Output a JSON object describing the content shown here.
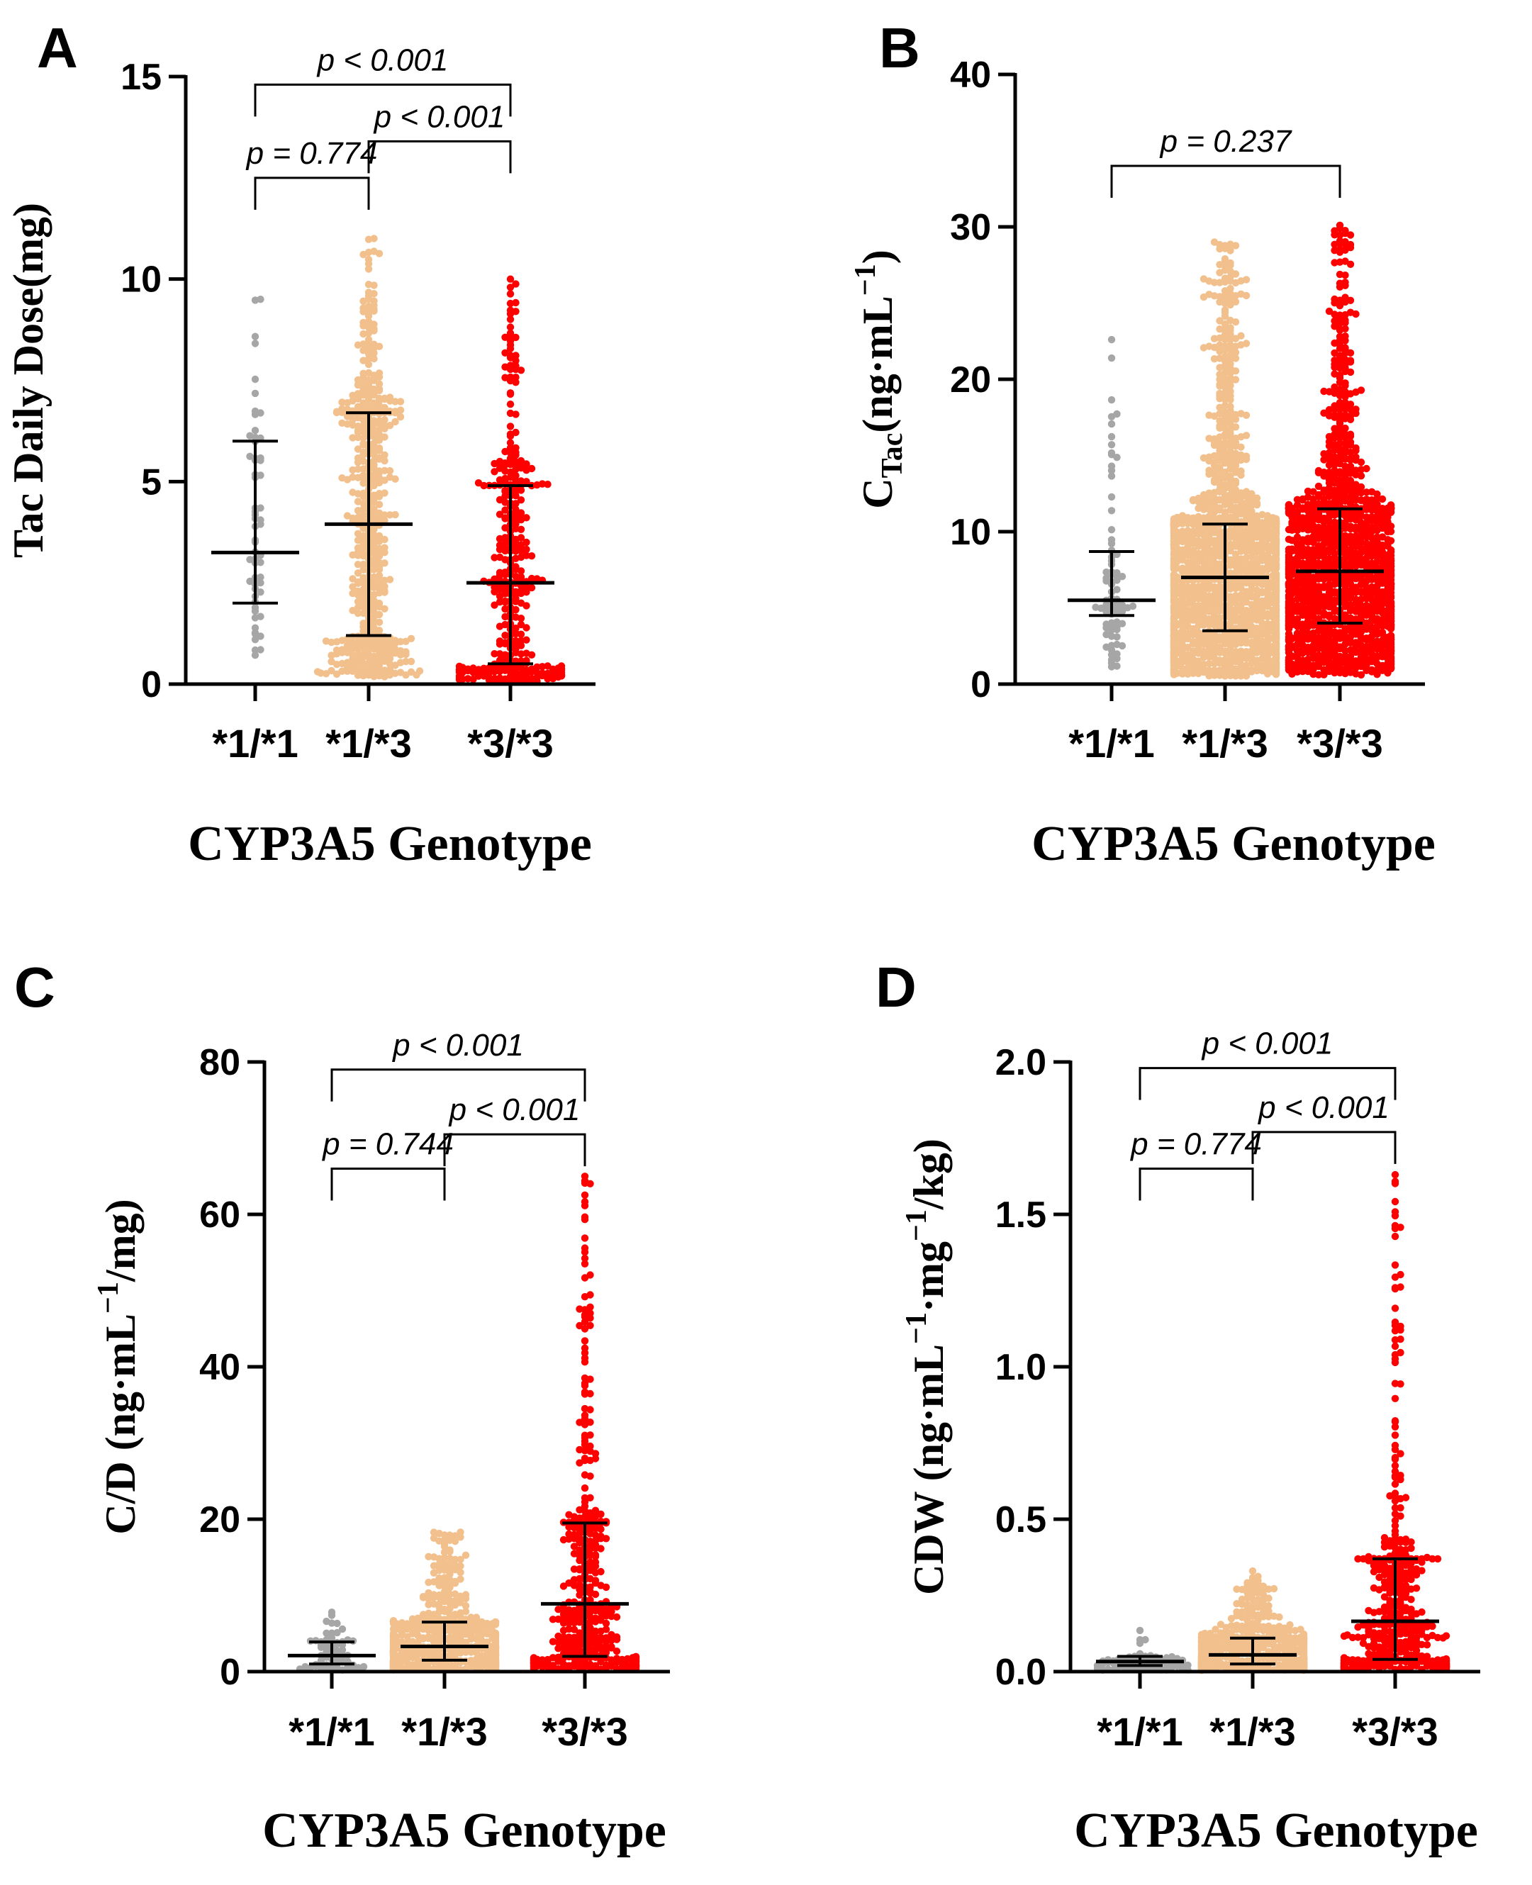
{
  "colors": {
    "g11": "#a6a6a6",
    "g13": "#f2c08c",
    "g33": "#ff0000",
    "axis": "#000000"
  },
  "chart_data": [
    {
      "panel": "A",
      "type": "scatter",
      "categories": [
        "*1/*1",
        "*1/*3",
        "*3/*3"
      ],
      "xlabel": "CYP3A5 Genotype",
      "ylabel": "Tac Daily Dose(mg)",
      "ylabel_parts": [
        {
          "text": "Tac Daily Dose(mg)",
          "style": "normal"
        }
      ],
      "ylim": [
        0,
        15
      ],
      "yticks": [
        0,
        5,
        10,
        15
      ],
      "ytick_labels": [
        "0",
        "5",
        "10",
        "15"
      ],
      "tick_decimals": 0,
      "groups": [
        {
          "name": "*1/*1",
          "median": 3.25,
          "q1": 2.0,
          "q3": 6.0,
          "max": 9.5,
          "n": 60
        },
        {
          "name": "*1/*3",
          "median": 3.95,
          "q1": 1.2,
          "q3": 6.7,
          "max": 11.0,
          "n": 500
        },
        {
          "name": "*3/*3",
          "median": 2.5,
          "q1": 0.5,
          "q3": 4.9,
          "max": 10.0,
          "n": 350
        }
      ],
      "comparisons": [
        {
          "from": 0,
          "to": 1,
          "label": "p = 0.774",
          "y": 12.5
        },
        {
          "from": 1,
          "to": 2,
          "label": "p < 0.001",
          "y": 13.4
        },
        {
          "from": 0,
          "to": 2,
          "label": "p < 0.001",
          "y": 14.8
        }
      ]
    },
    {
      "panel": "B",
      "type": "scatter",
      "categories": [
        "*1/*1",
        "*1/*3",
        "*3/*3"
      ],
      "xlabel": "CYP3A5 Genotype",
      "ylabel": "CTac(ng·mL−1)",
      "ylabel_parts": [
        {
          "text": "C",
          "style": "normal"
        },
        {
          "text": "Tac",
          "style": "sub"
        },
        {
          "text": "(ng·mL",
          "style": "normal"
        },
        {
          "text": "−1",
          "style": "sup"
        },
        {
          "text": ")",
          "style": "normal"
        }
      ],
      "ylim": [
        0,
        40
      ],
      "yticks": [
        0,
        10,
        20,
        30,
        40
      ],
      "ytick_labels": [
        "0",
        "10",
        "20",
        "30",
        "40"
      ],
      "tick_decimals": 0,
      "groups": [
        {
          "name": "*1/*1",
          "median": 5.5,
          "q1": 4.5,
          "q3": 8.7,
          "max": 22.6,
          "n": 80
        },
        {
          "name": "*1/*3",
          "median": 7.0,
          "q1": 3.5,
          "q3": 10.5,
          "max": 29.0,
          "n": 1400
        },
        {
          "name": "*3/*3",
          "median": 7.4,
          "q1": 4.0,
          "q3": 11.5,
          "max": 30.1,
          "n": 1200
        }
      ],
      "comparisons": [
        {
          "from": 0,
          "to": 2,
          "label": "p = 0.237",
          "y": 34.0
        }
      ]
    },
    {
      "panel": "C",
      "type": "scatter",
      "categories": [
        "*1/*1",
        "*1/*3",
        "*3/*3"
      ],
      "xlabel": "CYP3A5 Genotype",
      "ylabel": "C/D (ng·mL−1/mg)",
      "ylabel_parts": [
        {
          "text": "C/D (ng·mL",
          "style": "normal"
        },
        {
          "text": "−1",
          "style": "sup"
        },
        {
          "text": "/mg)",
          "style": "normal"
        }
      ],
      "ylim": [
        0,
        80
      ],
      "yticks": [
        0,
        20,
        40,
        60,
        80
      ],
      "ytick_labels": [
        "0",
        "20",
        "40",
        "60",
        "80"
      ],
      "tick_decimals": 0,
      "groups": [
        {
          "name": "*1/*1",
          "median": 2.1,
          "q1": 1.0,
          "q3": 3.9,
          "max": 7.8,
          "n": 60
        },
        {
          "name": "*1/*3",
          "median": 3.3,
          "q1": 1.5,
          "q3": 6.5,
          "max": 18.3,
          "n": 500
        },
        {
          "name": "*3/*3",
          "median": 8.9,
          "q1": 2.0,
          "q3": 19.5,
          "max": 65.0,
          "n": 400
        }
      ],
      "comparisons": [
        {
          "from": 0,
          "to": 1,
          "label": "p = 0.744",
          "y": 66.0
        },
        {
          "from": 1,
          "to": 2,
          "label": "p < 0.001",
          "y": 70.5
        },
        {
          "from": 0,
          "to": 2,
          "label": "p < 0.001",
          "y": 79.0
        }
      ]
    },
    {
      "panel": "D",
      "type": "scatter",
      "categories": [
        "*1/*1",
        "*1/*3",
        "*3/*3"
      ],
      "xlabel": "CYP3A5 Genotype",
      "ylabel": "CDW (ng·mL−1·mg−1/kg)",
      "ylabel_parts": [
        {
          "text": "CDW (ng·mL",
          "style": "normal"
        },
        {
          "text": "−1",
          "style": "sup"
        },
        {
          "text": "·mg",
          "style": "normal"
        },
        {
          "text": "−1",
          "style": "sup"
        },
        {
          "text": "/kg)",
          "style": "normal"
        }
      ],
      "ylim": [
        0,
        2.0
      ],
      "yticks": [
        0,
        0.5,
        1.0,
        1.5,
        2.0
      ],
      "ytick_labels": [
        "0.0",
        "0.5",
        "1.0",
        "1.5",
        "2.0"
      ],
      "tick_decimals": 1,
      "groups": [
        {
          "name": "*1/*1",
          "median": 0.033,
          "q1": 0.02,
          "q3": 0.05,
          "max": 0.135,
          "n": 60
        },
        {
          "name": "*1/*3",
          "median": 0.055,
          "q1": 0.025,
          "q3": 0.11,
          "max": 0.33,
          "n": 500
        },
        {
          "name": "*3/*3",
          "median": 0.165,
          "q1": 0.04,
          "q3": 0.37,
          "max": 1.63,
          "n": 400
        }
      ],
      "comparisons": [
        {
          "from": 0,
          "to": 1,
          "label": "p = 0.774",
          "y": 1.65
        },
        {
          "from": 1,
          "to": 2,
          "label": "p < 0.001",
          "y": 1.77
        },
        {
          "from": 0,
          "to": 2,
          "label": "p < 0.001",
          "y": 1.98
        }
      ]
    }
  ]
}
